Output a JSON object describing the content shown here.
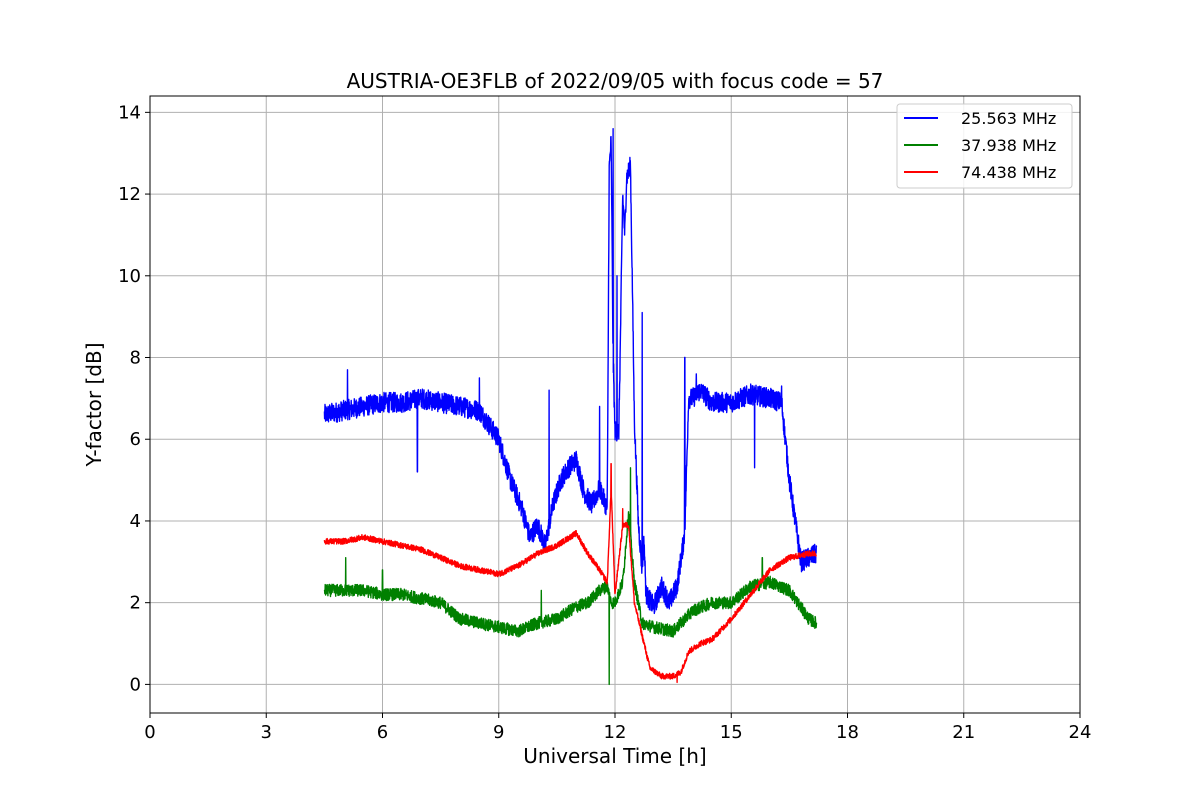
{
  "chart_data": {
    "type": "line",
    "title": "AUSTRIA-OE3FLB of 2022/09/05 with focus code = 57",
    "xlabel": "Universal Time [h]",
    "ylabel": "Y-factor [dB]",
    "xlim": [
      0,
      24
    ],
    "ylim": [
      -0.7,
      14.4
    ],
    "xticks": [
      0,
      3,
      6,
      9,
      12,
      15,
      18,
      21,
      24
    ],
    "yticks": [
      0,
      2,
      4,
      6,
      8,
      10,
      12,
      14
    ],
    "grid": true,
    "legend_position": "top-right",
    "series": [
      {
        "name": "25.563 MHz",
        "color": "#0000ff",
        "noise": 0.25,
        "x": [
          4.5,
          5.0,
          5.5,
          6.0,
          6.5,
          7.0,
          7.5,
          8.0,
          8.5,
          9.0,
          9.3,
          9.6,
          9.8,
          10.0,
          10.2,
          10.4,
          10.6,
          10.8,
          11.0,
          11.2,
          11.4,
          11.6,
          11.8,
          11.85,
          11.9,
          11.95,
          12.0,
          12.1,
          12.2,
          12.25,
          12.3,
          12.4,
          12.5,
          12.6,
          12.7,
          12.75,
          12.8,
          13.0,
          13.2,
          13.4,
          13.6,
          13.8,
          13.9,
          14.0,
          14.2,
          14.5,
          15.0,
          15.5,
          16.0,
          16.3,
          16.5,
          16.8,
          17.0,
          17.2
        ],
        "y": [
          6.6,
          6.7,
          6.8,
          6.9,
          6.9,
          7.0,
          6.9,
          6.8,
          6.7,
          6.0,
          5.0,
          4.3,
          3.6,
          3.9,
          3.4,
          4.4,
          5.0,
          5.3,
          5.5,
          4.7,
          4.4,
          4.8,
          4.3,
          12.6,
          13.3,
          8.0,
          6.2,
          6.2,
          12.0,
          11.0,
          12.4,
          12.7,
          6.5,
          4.0,
          2.8,
          3.5,
          2.2,
          1.9,
          2.4,
          2.0,
          2.4,
          3.7,
          7.0,
          7.0,
          7.2,
          6.9,
          6.9,
          7.1,
          7.0,
          6.9,
          5.0,
          3.0,
          3.1,
          3.2
        ],
        "spikes": [
          [
            5.1,
            7.7
          ],
          [
            6.9,
            5.2
          ],
          [
            8.5,
            7.5
          ],
          [
            10.3,
            7.2
          ],
          [
            11.6,
            6.8
          ],
          [
            11.95,
            13.6
          ],
          [
            12.05,
            10.0
          ],
          [
            12.7,
            9.1
          ],
          [
            13.8,
            8.0
          ],
          [
            14.1,
            7.6
          ],
          [
            15.6,
            5.3
          ],
          [
            16.3,
            7.3
          ]
        ]
      },
      {
        "name": "37.938 MHz",
        "color": "#008000",
        "noise": 0.15,
        "x": [
          4.5,
          5.0,
          5.5,
          6.0,
          6.5,
          7.0,
          7.5,
          8.0,
          8.5,
          9.0,
          9.5,
          10.0,
          10.5,
          11.0,
          11.3,
          11.6,
          11.8,
          11.9,
          12.0,
          12.2,
          12.35,
          12.5,
          12.7,
          13.0,
          13.5,
          14.0,
          14.5,
          15.0,
          15.5,
          16.0,
          16.5,
          17.0,
          17.2
        ],
        "y": [
          2.3,
          2.3,
          2.3,
          2.2,
          2.2,
          2.1,
          2.0,
          1.6,
          1.5,
          1.4,
          1.3,
          1.5,
          1.6,
          1.9,
          2.0,
          2.3,
          2.4,
          2.0,
          2.0,
          2.5,
          4.2,
          2.5,
          1.5,
          1.4,
          1.3,
          1.8,
          2.0,
          2.0,
          2.4,
          2.5,
          2.3,
          1.6,
          1.5
        ],
        "spikes": [
          [
            5.05,
            3.1
          ],
          [
            6.0,
            2.8
          ],
          [
            10.1,
            2.3
          ],
          [
            11.85,
            0.0
          ],
          [
            12.4,
            5.3
          ],
          [
            15.8,
            3.1
          ]
        ]
      },
      {
        "name": "74.438 MHz",
        "color": "#ff0000",
        "noise": 0.07,
        "x": [
          4.5,
          5.0,
          5.5,
          6.0,
          6.5,
          7.0,
          7.5,
          8.0,
          8.5,
          9.0,
          9.5,
          10.0,
          10.5,
          11.0,
          11.3,
          11.6,
          11.8,
          11.9,
          12.0,
          12.2,
          12.35,
          12.5,
          12.7,
          12.9,
          13.2,
          13.5,
          13.7,
          13.9,
          14.2,
          14.5,
          15.0,
          15.5,
          16.0,
          16.5,
          17.0,
          17.2
        ],
        "y": [
          3.5,
          3.5,
          3.6,
          3.5,
          3.4,
          3.3,
          3.1,
          2.9,
          2.8,
          2.7,
          2.9,
          3.2,
          3.4,
          3.7,
          3.2,
          2.8,
          2.5,
          4.8,
          2.2,
          3.9,
          3.9,
          2.0,
          1.2,
          0.4,
          0.2,
          0.2,
          0.3,
          0.8,
          1.0,
          1.1,
          1.6,
          2.2,
          2.8,
          3.1,
          3.2,
          3.2
        ],
        "spikes": [
          [
            11.9,
            5.4
          ],
          [
            12.2,
            4.3
          ],
          [
            13.6,
            0.05
          ]
        ]
      }
    ]
  }
}
